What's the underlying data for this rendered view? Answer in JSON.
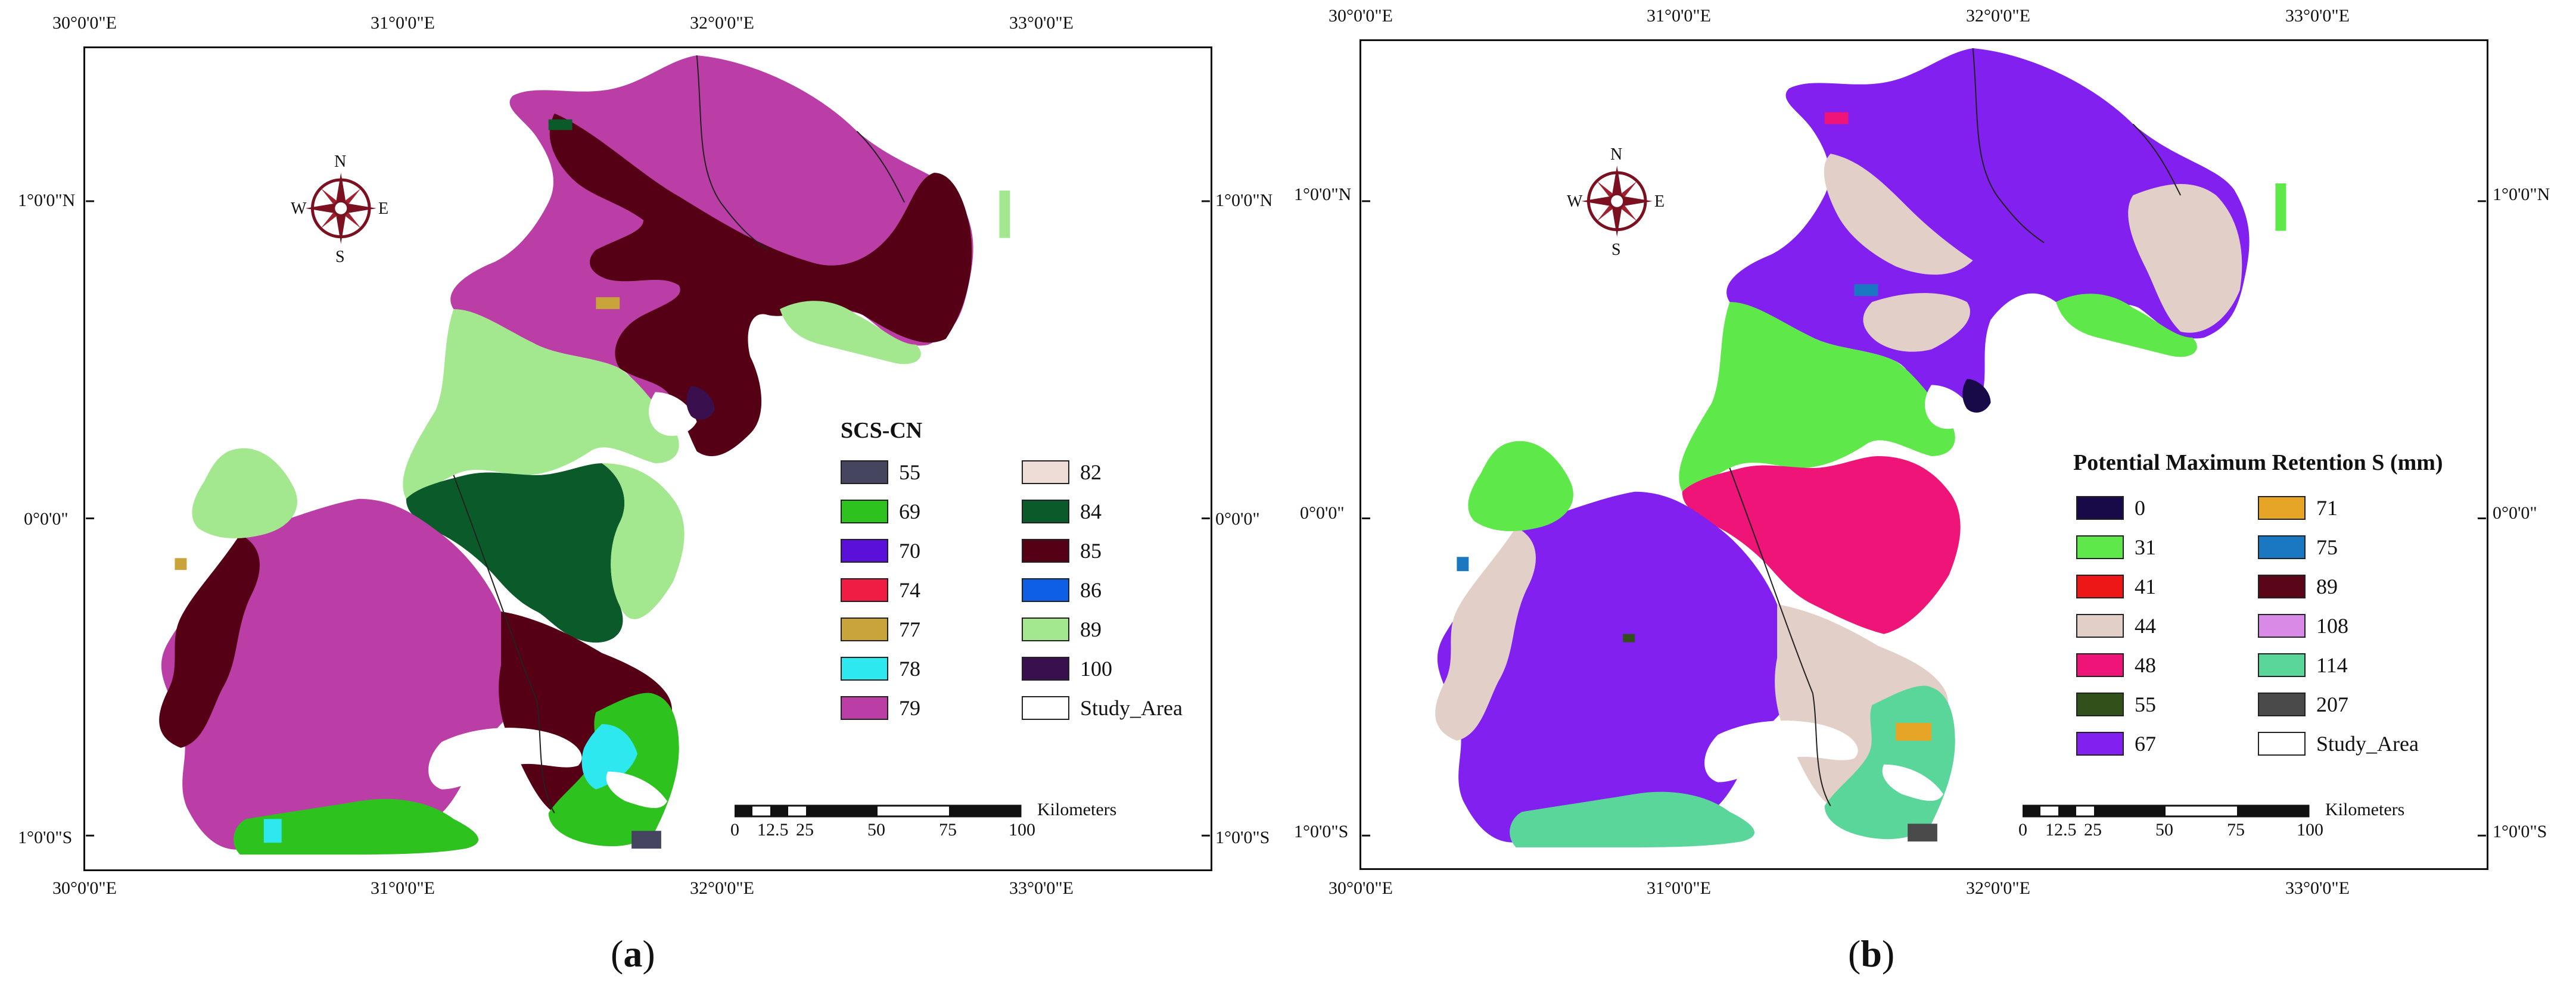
{
  "panels": [
    {
      "id": "a",
      "label_open": "(",
      "label_letter": "a",
      "label_close": ")",
      "legend_title": "SCS-CN",
      "legend_left": [
        {
          "label": "55",
          "color": "#454560"
        },
        {
          "label": "69",
          "color": "#2ec21f"
        },
        {
          "label": "70",
          "color": "#5a10d8"
        },
        {
          "label": "74",
          "color": "#ef1d43"
        },
        {
          "label": "77",
          "color": "#c9a43a"
        },
        {
          "label": "78",
          "color": "#2ee8f0"
        },
        {
          "label": "79",
          "color": "#bb3ea6"
        }
      ],
      "legend_right": [
        {
          "label": "82",
          "color": "#eeddd7"
        },
        {
          "label": "84",
          "color": "#0b5a2a"
        },
        {
          "label": "85",
          "color": "#560015"
        },
        {
          "label": "86",
          "color": "#0f5ee6"
        },
        {
          "label": "89",
          "color": "#a3e88f"
        },
        {
          "label": "100",
          "color": "#3a0f4e"
        },
        {
          "label": "Study_Area",
          "color": "#ffffff"
        }
      ]
    },
    {
      "id": "b",
      "label_open": "(",
      "label_letter": "b",
      "label_close": ")",
      "legend_title": "Potential Maximum Retention S (mm)",
      "legend_left": [
        {
          "label": "0",
          "color": "#180a48"
        },
        {
          "label": "31",
          "color": "#5ee84a"
        },
        {
          "label": "41",
          "color": "#ee1717"
        },
        {
          "label": "44",
          "color": "#e2cfc8"
        },
        {
          "label": "48",
          "color": "#ef1478"
        },
        {
          "label": "55",
          "color": "#32501a"
        },
        {
          "label": "67",
          "color": "#8220f0"
        }
      ],
      "legend_right": [
        {
          "label": "71",
          "color": "#e6a526"
        },
        {
          "label": "75",
          "color": "#1a78c2"
        },
        {
          "label": "89",
          "color": "#5a0618"
        },
        {
          "label": "108",
          "color": "#d88ae6"
        },
        {
          "label": "114",
          "color": "#5ad69a"
        },
        {
          "label": "207",
          "color": "#4a4a4a"
        },
        {
          "label": "Study_Area",
          "color": "#ffffff"
        }
      ]
    }
  ],
  "axes": {
    "lon_top": [
      "30°0'0\"E",
      "31°0'0\"E",
      "32°0'0\"E",
      "33°0'0\"E"
    ],
    "lon_bottom": [
      "30°0'0\"E",
      "31°0'0\"E",
      "32°0'0\"E",
      "33°0'0\"E"
    ],
    "lat_left": [
      "1°0'0\"N",
      "0°0'0\"",
      "1°0'0\"S"
    ],
    "lat_right": [
      "1°0'0\"N",
      "0°0'0\"",
      "1°0'0\"S"
    ]
  },
  "scale": {
    "unit": "Kilometers",
    "ticks": [
      "0",
      "12.5",
      "25",
      "50",
      "75",
      "100"
    ]
  },
  "compass": {
    "n": "N",
    "s": "S",
    "e": "E",
    "w": "W"
  }
}
